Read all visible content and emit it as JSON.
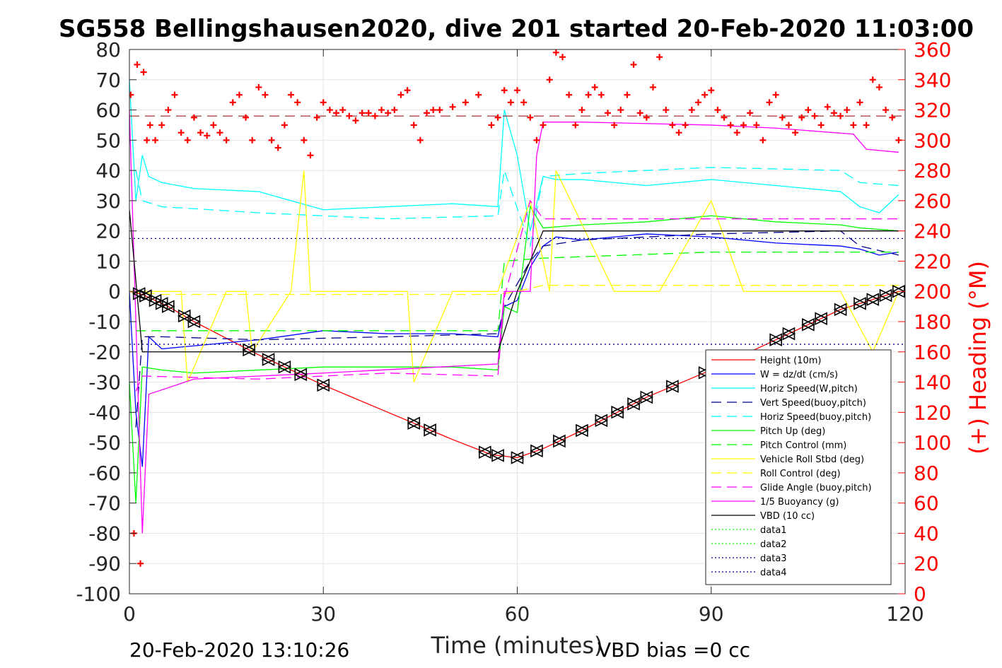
{
  "chart_data": {
    "type": "line",
    "title": "SG558 Bellingshausen2020, dive 201 started 20-Feb-2020 11:03:00",
    "xlabel": "Time (minutes)",
    "ylabel_right": "(+) Heading (°M)",
    "xlim": [
      0,
      120
    ],
    "ylim_left": [
      -100,
      80
    ],
    "ylim_right": [
      0,
      360
    ],
    "xticks": [
      0,
      30,
      60,
      90,
      120
    ],
    "yticks_left": [
      80,
      70,
      60,
      50,
      40,
      30,
      20,
      10,
      0,
      -10,
      -20,
      -30,
      -40,
      -50,
      -60,
      -70,
      -80,
      -90,
      -100
    ],
    "yticks_right": [
      360,
      340,
      320,
      300,
      280,
      260,
      240,
      220,
      200,
      180,
      160,
      140,
      120,
      100,
      80,
      60,
      40,
      20,
      0
    ],
    "grid": true,
    "legend_position": "bottom-right",
    "footer_left": "20-Feb-2020 13:10:26",
    "footer_right": "VBD bias =0 cc",
    "colors": {
      "red": "#ff0000",
      "blue": "#0000ff",
      "cyan": "#00ffff",
      "green": "#00ff00",
      "yellow": "#ffff00",
      "magenta": "#ff00ff",
      "black": "#000000",
      "navy": "#00008b",
      "darkred": "#8b0000"
    },
    "series": [
      {
        "name": "Height (10m)",
        "color": "#ff0000",
        "style": "solid",
        "x": [
          0,
          2,
          6,
          10,
          20,
          30,
          40,
          50,
          56,
          60,
          64,
          70,
          80,
          90,
          100,
          110,
          119
        ],
        "y": [
          0,
          -1,
          -5,
          -10,
          -21,
          -31,
          -40,
          -49,
          -54,
          -55,
          -52,
          -46,
          -35,
          -26,
          -16,
          -6,
          0
        ]
      },
      {
        "name": "W = dz/dt (cm/s)",
        "color": "#0000ff",
        "style": "solid",
        "x": [
          0,
          1,
          2,
          3,
          5,
          10,
          20,
          30,
          40,
          50,
          57,
          58,
          60,
          62,
          64,
          66,
          70,
          80,
          90,
          100,
          110,
          113,
          116,
          119
        ],
        "y": [
          0,
          -40,
          -58,
          -15,
          -19,
          -18,
          -16,
          -13,
          -14,
          -14,
          -15,
          -5,
          -3,
          8,
          15,
          18,
          17,
          19,
          18,
          16,
          15,
          14,
          12,
          13
        ]
      },
      {
        "name": "Horiz Speed(W,pitch)",
        "color": "#00ffff",
        "style": "solid",
        "x": [
          0,
          1,
          2,
          3,
          5,
          10,
          20,
          30,
          40,
          50,
          57,
          58,
          60,
          62,
          64,
          66,
          70,
          80,
          90,
          100,
          110,
          113,
          116,
          119
        ],
        "y": [
          70,
          30,
          45,
          38,
          36,
          34,
          33,
          27,
          28,
          29,
          28,
          60,
          45,
          20,
          38,
          37,
          37,
          35,
          37,
          35,
          33,
          28,
          26,
          32
        ]
      },
      {
        "name": "Vert Speed(buoy,pitch)",
        "color": "#00008b",
        "style": "dashed",
        "x": [
          1,
          2,
          5,
          20,
          40,
          57,
          58,
          62,
          64,
          70,
          90,
          110,
          113,
          119
        ],
        "y": [
          -45,
          -15,
          -15,
          -16,
          -15,
          -14,
          -5,
          10,
          15,
          17,
          19,
          20,
          15,
          12
        ]
      },
      {
        "name": "Horiz Speed(buoy,pitch)",
        "color": "#00ffff",
        "style": "dashed",
        "x": [
          1,
          2,
          5,
          20,
          40,
          57,
          58,
          62,
          64,
          70,
          90,
          110,
          113,
          119
        ],
        "y": [
          40,
          30,
          28,
          26,
          24,
          25,
          40,
          15,
          38,
          39,
          41,
          40,
          36,
          35
        ]
      },
      {
        "name": "Pitch Up (deg)",
        "color": "#00ff00",
        "style": "solid",
        "x": [
          0,
          1,
          2,
          5,
          10,
          20,
          30,
          40,
          50,
          57,
          58,
          60,
          62,
          64,
          70,
          80,
          90,
          100,
          110,
          113,
          119
        ],
        "y": [
          -30,
          -70,
          -25,
          -26,
          -27,
          -26,
          -25,
          -25,
          -25,
          -26,
          -5,
          -7,
          28,
          21,
          22,
          23,
          25,
          23,
          22,
          21,
          20
        ]
      },
      {
        "name": "Pitch Control (mm)",
        "color": "#00ff00",
        "style": "dashed",
        "x": [
          1,
          2,
          57,
          58,
          64,
          90,
          119
        ],
        "y": [
          -13,
          -13,
          -13,
          10,
          11,
          13,
          13
        ]
      },
      {
        "name": "Vehicle Roll Stbd (deg)",
        "color": "#ffff00",
        "style": "solid",
        "x": [
          0,
          3,
          5,
          8,
          9,
          15,
          18,
          19,
          25,
          27,
          28,
          35,
          43,
          44,
          50,
          55,
          57,
          62,
          65,
          66,
          75,
          80,
          82,
          90,
          95,
          100,
          105,
          110,
          115,
          119
        ],
        "y": [
          0,
          0,
          0,
          0,
          -30,
          0,
          0,
          -20,
          0,
          40,
          0,
          0,
          0,
          -30,
          0,
          0,
          0,
          30,
          0,
          40,
          0,
          0,
          0,
          30,
          0,
          0,
          0,
          0,
          -20,
          0
        ]
      },
      {
        "name": "Roll Control (deg)",
        "color": "#ffff00",
        "style": "dashed",
        "x": [
          0,
          5,
          20,
          40,
          57,
          60,
          64,
          90,
          119
        ],
        "y": [
          0,
          -1,
          -1,
          -1,
          -1,
          0,
          2,
          2,
          2
        ]
      },
      {
        "name": "Glide Angle (buoy,pitch)",
        "color": "#ff00ff",
        "style": "dashed",
        "x": [
          1,
          2,
          20,
          40,
          57,
          58,
          62,
          64,
          90,
          119
        ],
        "y": [
          -33,
          -28,
          -29,
          -27,
          -28,
          -2,
          30,
          24,
          24,
          24
        ]
      },
      {
        "name": "1/5 Buoyancy (g)",
        "color": "#ff00ff",
        "style": "solid",
        "x": [
          0,
          1,
          2,
          3,
          10,
          30,
          57,
          58,
          62,
          63,
          64,
          70,
          90,
          100,
          112,
          114,
          119
        ],
        "y": [
          60,
          -10,
          -80,
          -34,
          -29,
          -27,
          -24,
          0,
          0,
          45,
          56,
          56,
          55,
          54,
          52,
          47,
          46
        ]
      },
      {
        "name": "VBD (10 cc)",
        "color": "#000000",
        "style": "solid",
        "x": [
          0,
          2,
          57,
          60,
          64,
          119
        ],
        "y": [
          27,
          -20,
          -20,
          0,
          20,
          20
        ]
      },
      {
        "name": "data1",
        "color": "#00ff00",
        "style": "dotted",
        "x": [],
        "y": []
      },
      {
        "name": "data2",
        "color": "#00ff00",
        "style": "dotted",
        "x": [],
        "y": []
      },
      {
        "name": "data3",
        "color": "#00008b",
        "style": "dotted",
        "x": [
          0,
          120
        ],
        "y": [
          17.5,
          17.5
        ]
      },
      {
        "name": "data4",
        "color": "#00008b",
        "style": "dotted",
        "x": [
          0,
          120
        ],
        "y": [
          -17.5,
          -17.5
        ]
      }
    ],
    "ref_line_right": {
      "color": "#8b0000",
      "style": "dashed",
      "y": 316
    },
    "heading": {
      "axis": "right",
      "color": "#ff0000",
      "marker": "+",
      "x": [
        0.2,
        0.7,
        1.2,
        1.7,
        2.2,
        2.7,
        3.2,
        4,
        5,
        6,
        7,
        8,
        9,
        10,
        11,
        12,
        13,
        14,
        15,
        16,
        17,
        18,
        19,
        20,
        21,
        22,
        23,
        24,
        25,
        26,
        27,
        28,
        29,
        30,
        31,
        32,
        33,
        34,
        35,
        36,
        37,
        38,
        39,
        40,
        41,
        42,
        43,
        44,
        45,
        46,
        47,
        48,
        50,
        52,
        54,
        56,
        57,
        58,
        59,
        60,
        61,
        62,
        63,
        64,
        65,
        66,
        67,
        68,
        69,
        70,
        71,
        72,
        73,
        74,
        75,
        76,
        77,
        78,
        79,
        80,
        81,
        82,
        83,
        84,
        85,
        86,
        87,
        88,
        89,
        90,
        91,
        92,
        93,
        94,
        95,
        96,
        97,
        98,
        99,
        100,
        101,
        102,
        103,
        104,
        105,
        106,
        107,
        108,
        109,
        110,
        111,
        112,
        113,
        114,
        115,
        116,
        117,
        118,
        119
      ],
      "y": [
        330,
        40,
        350,
        20,
        345,
        300,
        310,
        300,
        310,
        320,
        330,
        305,
        300,
        315,
        305,
        303,
        310,
        305,
        300,
        325,
        330,
        315,
        300,
        335,
        330,
        300,
        295,
        310,
        330,
        325,
        300,
        290,
        315,
        325,
        320,
        318,
        320,
        316,
        313,
        318,
        318,
        316,
        320,
        318,
        320,
        330,
        333,
        310,
        300,
        318,
        320,
        320,
        322,
        325,
        330,
        310,
        315,
        333,
        325,
        333,
        325,
        315,
        300,
        310,
        340,
        358,
        355,
        330,
        310,
        320,
        330,
        335,
        330,
        318,
        310,
        320,
        330,
        350,
        318,
        315,
        335,
        355,
        320,
        310,
        305,
        310,
        320,
        325,
        330,
        333,
        320,
        315,
        310,
        305,
        310,
        318,
        310,
        300,
        325,
        330,
        315,
        310,
        305,
        315,
        320,
        316,
        310,
        322,
        318,
        316,
        320,
        310,
        325,
        310,
        340,
        335,
        320,
        315,
        300
      ]
    },
    "markers": {
      "series": "Height (10m)",
      "color": "#000000",
      "x": [
        1.5,
        2.5,
        4,
        5,
        6,
        8.5,
        10,
        18.5,
        21.5,
        24,
        26.5,
        30,
        44,
        46.5,
        55,
        57,
        60,
        63,
        66.5,
        70,
        73,
        75.5,
        78,
        80,
        84,
        89,
        100,
        102,
        105,
        107,
        110,
        113,
        115,
        117,
        119
      ]
    }
  }
}
